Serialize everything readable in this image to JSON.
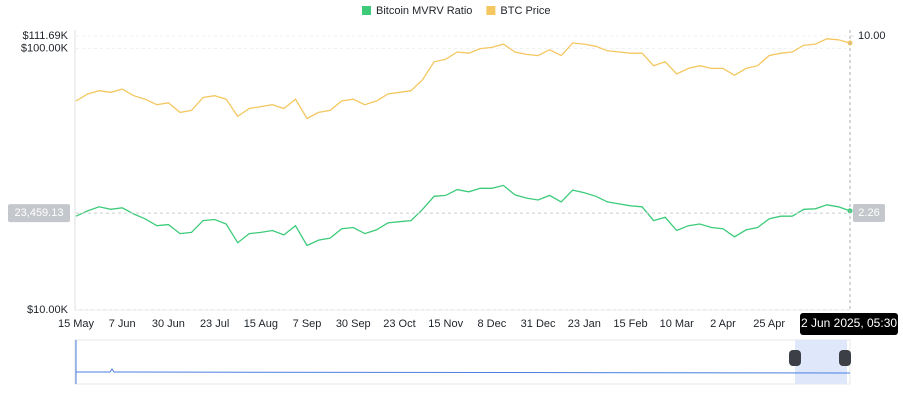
{
  "chart_data": {
    "type": "line",
    "categories": [
      "15 May",
      null,
      null,
      null,
      "7 Jun",
      null,
      null,
      null,
      "30 Jun",
      null,
      null,
      null,
      "23 Jul",
      null,
      null,
      null,
      "15 Aug",
      null,
      null,
      null,
      "7 Sep",
      null,
      null,
      null,
      "30 Sep",
      null,
      null,
      null,
      "23 Oct",
      null,
      null,
      null,
      "15 Nov",
      null,
      null,
      null,
      "8 Dec",
      null,
      null,
      null,
      "31 Dec",
      null,
      null,
      null,
      "23 Jan",
      null,
      null,
      null,
      "15 Feb",
      null,
      null,
      null,
      "10 Mar",
      null,
      null,
      null,
      "2 Apr",
      null,
      null,
      null,
      "25 Apr",
      null,
      null,
      null,
      null,
      null,
      null,
      null
    ],
    "series": [
      {
        "name": "Bitcoin MVRV Ratio",
        "color": "#3dcb7a",
        "axis": "y2",
        "values": [
          2.2,
          2.3,
          2.38,
          2.33,
          2.36,
          2.24,
          2.15,
          2.03,
          2.05,
          1.9,
          1.92,
          2.12,
          2.14,
          2.06,
          1.76,
          1.9,
          1.92,
          1.95,
          1.88,
          2.03,
          1.72,
          1.8,
          1.83,
          1.98,
          2.0,
          1.9,
          1.96,
          2.08,
          2.1,
          2.12,
          2.33,
          2.6,
          2.62,
          2.75,
          2.7,
          2.78,
          2.78,
          2.85,
          2.63,
          2.56,
          2.52,
          2.62,
          2.48,
          2.74,
          2.68,
          2.6,
          2.48,
          2.44,
          2.4,
          2.38,
          2.12,
          2.18,
          1.95,
          2.03,
          2.06,
          2.0,
          1.98,
          1.85,
          1.96,
          2.0,
          2.15,
          2.2,
          2.2,
          2.33,
          2.34,
          2.42,
          2.38,
          2.3
        ]
      },
      {
        "name": "BTC Price",
        "color": "#f4c760",
        "values": [
          63000,
          67000,
          69000,
          68000,
          70000,
          66000,
          64000,
          61000,
          62000,
          57000,
          58000,
          65000,
          66000,
          64000,
          55000,
          59000,
          60000,
          61000,
          59000,
          64000,
          54000,
          57000,
          58000,
          63000,
          64000,
          61000,
          63000,
          67000,
          68000,
          69000,
          76000,
          89000,
          91000,
          97000,
          96000,
          100000,
          101000,
          104000,
          97000,
          95000,
          94000,
          99000,
          94000,
          105000,
          104000,
          102000,
          98000,
          97000,
          96000,
          96000,
          86000,
          89000,
          80000,
          84000,
          86000,
          84000,
          84000,
          79000,
          84000,
          86000,
          94000,
          96000,
          97000,
          103000,
          104000,
          109000,
          108000,
          105000
        ]
      }
    ],
    "ylim": [
      10000,
      111690
    ],
    "yticks": [
      {
        "value": 10000,
        "label": "$10.00K"
      },
      {
        "value": 100000,
        "label": "$100.00K"
      },
      {
        "value": 111690,
        "label": "$111.69K"
      }
    ],
    "y_log": true,
    "y2lim": [
      1,
      10
    ],
    "y2ticks": [
      {
        "value": 10,
        "label": "10.00"
      }
    ],
    "y2_log": true,
    "grid": true,
    "legend": "top",
    "crosshair": {
      "x_label": "2 Jun 2025, 05:30",
      "y": {
        "value": 23459.13,
        "label": "23,459.13"
      },
      "y2": {
        "value": 2.26,
        "label": "2.26"
      }
    }
  }
}
